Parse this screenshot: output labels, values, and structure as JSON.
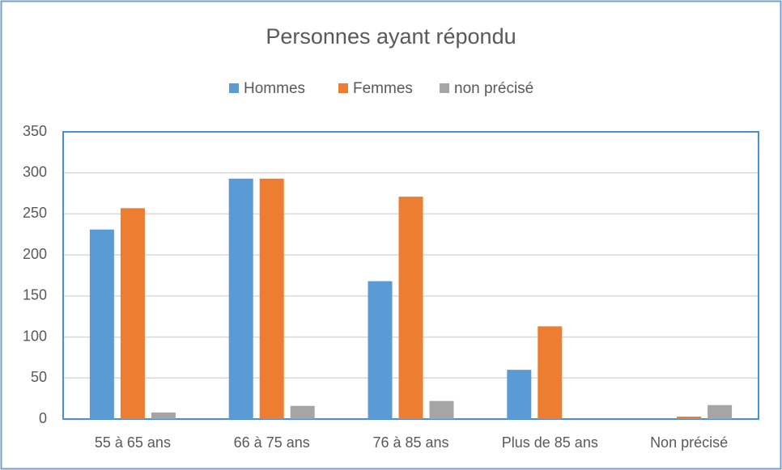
{
  "chart_data": {
    "type": "bar",
    "title": "Personnes ayant répondu",
    "categories": [
      "55 à 65 ans",
      "66 à 75 ans",
      "76 à 85 ans",
      "Plus de 85 ans",
      "Non précisé"
    ],
    "series": [
      {
        "name": "Hommes",
        "color": "#5b9bd5",
        "values": [
          231,
          293,
          168,
          60,
          0
        ]
      },
      {
        "name": "Femmes",
        "color": "#ed7d31",
        "values": [
          257,
          293,
          271,
          113,
          3
        ]
      },
      {
        "name": "non précisé",
        "color": "#a5a5a5",
        "values": [
          8,
          16,
          22,
          0,
          17
        ]
      }
    ],
    "ylim": [
      0,
      350
    ],
    "yticks": [
      0,
      50,
      100,
      150,
      200,
      250,
      300,
      350
    ],
    "grid": true,
    "legend": "top"
  }
}
